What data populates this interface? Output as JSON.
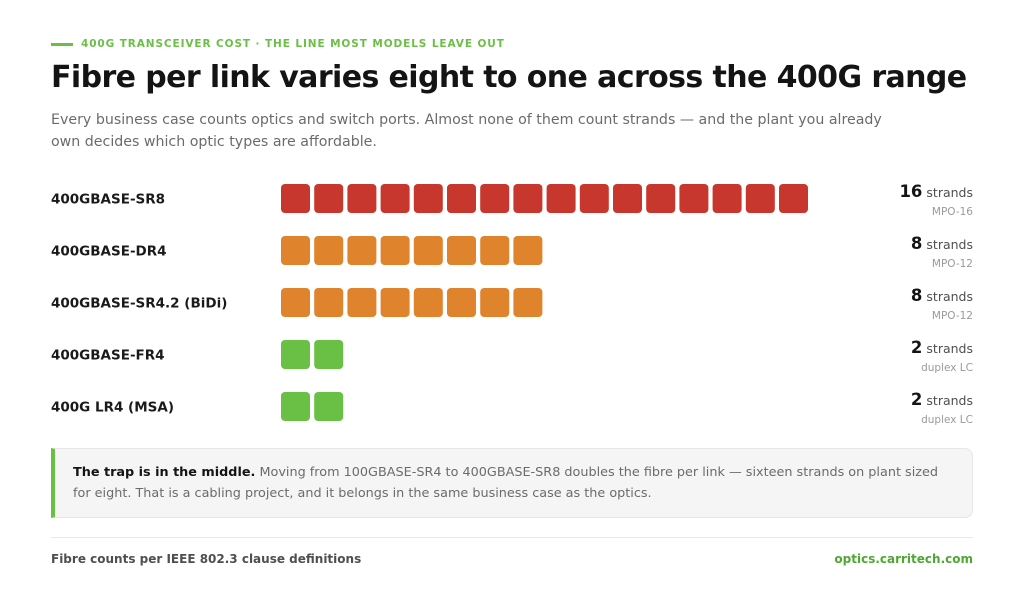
{
  "header": {
    "eyebrow": "400G TRANSCEIVER COST · THE LINE MOST MODELS LEAVE OUT",
    "title": "Fibre per link varies eight to one across the 400G range",
    "subtitle": "Every business case counts optics and switch ports. Almost none of them count strands — and the plant you already own decides which optic types are affordable."
  },
  "colors": {
    "accent": "#6abf45",
    "red": "#c8372d",
    "orange": "#df842c",
    "green": "#6abf45"
  },
  "chart_data": {
    "type": "bar",
    "categories": [
      "400GBASE-SR8",
      "400GBASE-DR4",
      "400GBASE-SR4.2 (BiDi)",
      "400GBASE-FR4",
      "400G LR4 (MSA)"
    ],
    "values": [
      16,
      8,
      8,
      2,
      2
    ],
    "value_unit": "strands",
    "connectors": [
      "MPO-16",
      "MPO-12",
      "MPO-12",
      "duplex LC",
      "duplex LC"
    ],
    "bar_colors": [
      "#c8372d",
      "#df842c",
      "#df842c",
      "#6abf45",
      "#6abf45"
    ],
    "title": "Fibre per link varies eight to one across the 400G range",
    "xlabel": "",
    "ylabel": "",
    "grid": false
  },
  "callout": {
    "lead": "The trap is in the middle.",
    "body": "Moving from 100GBASE-SR4 to 400GBASE-SR8 doubles the fibre per link — sixteen strands on plant sized for eight. That is a cabling project, and it belongs in the same business case as the optics."
  },
  "footer": {
    "source": "Fibre counts per IEEE 802.3 clause definitions",
    "site": "optics.carritech.com"
  }
}
